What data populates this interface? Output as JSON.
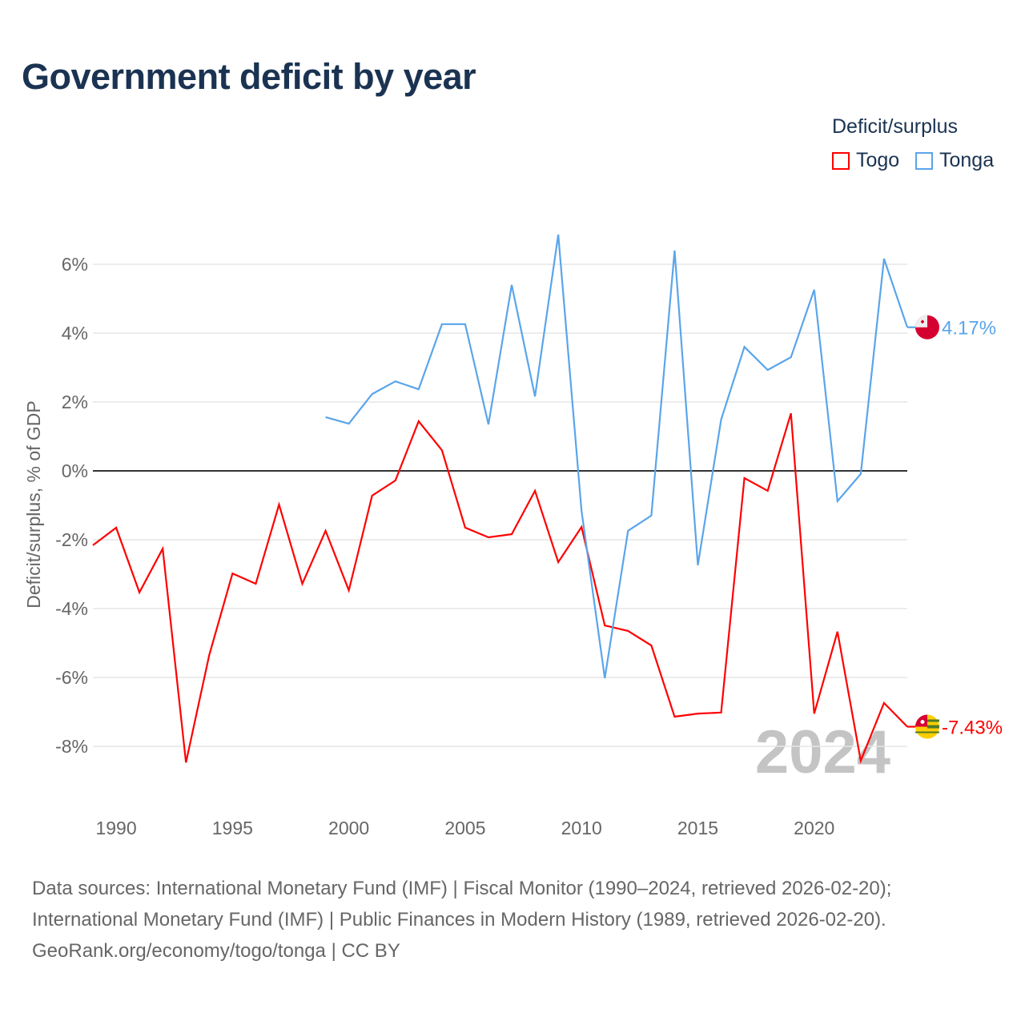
{
  "title": "Government deficit by year",
  "legend": {
    "title": "Deficit/surplus",
    "items": [
      {
        "name": "Togo",
        "color": "#ff0000"
      },
      {
        "name": "Tonga",
        "color": "#5aa5ea"
      }
    ]
  },
  "sources": [
    "Data sources: International Monetary Fund (IMF) | Fiscal Monitor (1990–2024, retrieved 2026-02-20);",
    "International Monetary Fund (IMF) | Public Finances in Modern History (1989, retrieved 2026-02-20).",
    "GeoRank.org/economy/togo/tonga | CC BY"
  ],
  "chart_data": {
    "type": "line",
    "title": "Government deficit by year",
    "ylabel": "Deficit/surplus, % of GDP",
    "xlabel": "",
    "xlim": [
      1989,
      2024
    ],
    "ylim": [
      -9.5,
      7.5
    ],
    "xticks": [
      1990,
      1995,
      2000,
      2005,
      2010,
      2015,
      2020
    ],
    "yticks": [
      -8,
      -6,
      -4,
      -2,
      0,
      2,
      4,
      6
    ],
    "ytick_labels": [
      "-8%",
      "-6%",
      "-4%",
      "-2%",
      "0%",
      "2%",
      "4%",
      "6%"
    ],
    "grid": true,
    "watermark_year": "2024",
    "series": [
      {
        "name": "Togo",
        "color": "#ff0000",
        "end_label": "-7.43%",
        "x": [
          1989,
          1990,
          1991,
          1992,
          1993,
          1994,
          1995,
          1996,
          1997,
          1998,
          1999,
          2000,
          2001,
          2002,
          2003,
          2004,
          2005,
          2006,
          2007,
          2008,
          2009,
          2010,
          2011,
          2012,
          2013,
          2014,
          2015,
          2016,
          2017,
          2018,
          2019,
          2020,
          2021,
          2022,
          2023,
          2024
        ],
        "values": [
          -2.16,
          -1.65,
          -3.53,
          -2.26,
          -8.47,
          -5.35,
          -2.98,
          -3.28,
          -0.98,
          -3.28,
          -1.74,
          -3.47,
          -0.72,
          -0.28,
          1.44,
          0.6,
          -1.65,
          -1.93,
          -1.84,
          -0.58,
          -2.65,
          -1.63,
          -4.49,
          -4.65,
          -5.07,
          -7.14,
          -7.05,
          -7.02,
          -0.21,
          -0.58,
          1.67,
          -7.05,
          -4.67,
          -8.42,
          -6.74,
          -7.43
        ]
      },
      {
        "name": "Tonga",
        "color": "#5aa5ea",
        "end_label": "4.17%",
        "x": [
          1999,
          2000,
          2001,
          2002,
          2003,
          2004,
          2005,
          2006,
          2007,
          2008,
          2009,
          2010,
          2011,
          2012,
          2013,
          2014,
          2015,
          2016,
          2017,
          2018,
          2019,
          2020,
          2021,
          2022,
          2023,
          2024
        ],
        "values": [
          1.56,
          1.37,
          2.23,
          2.6,
          2.37,
          4.26,
          4.26,
          1.35,
          5.4,
          2.16,
          6.86,
          -1.16,
          -6.02,
          -1.74,
          -1.3,
          6.4,
          -2.74,
          1.49,
          3.6,
          2.93,
          3.3,
          5.26,
          -0.88,
          -0.09,
          6.16,
          4.17
        ]
      }
    ]
  }
}
